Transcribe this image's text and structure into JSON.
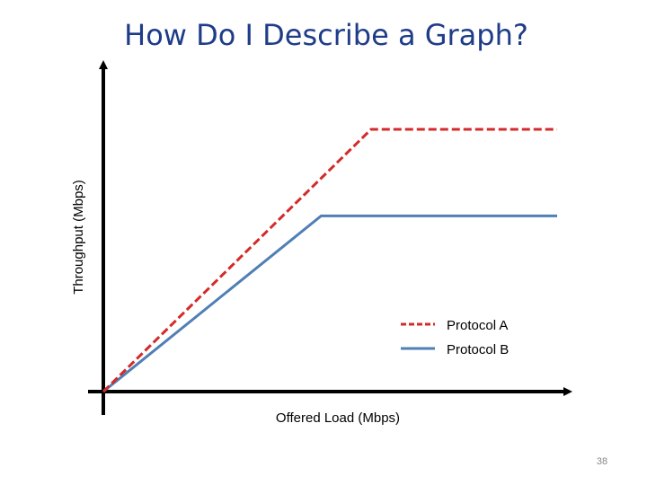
{
  "slide": {
    "title": "How Do I Describe a Graph?",
    "page_number": "38"
  },
  "chart_data": {
    "type": "line",
    "xlabel": "Offered Load (Mbps)",
    "ylabel": "Throughput (Mbps)",
    "grid": false,
    "legend_position": "bottom-right",
    "xlim": [
      0,
      100
    ],
    "ylim": [
      0,
      100
    ],
    "series": [
      {
        "name": "Protocol A",
        "color": "#d42a2a",
        "dash": "dashed",
        "points": [
          [
            0,
            0
          ],
          [
            59,
            100
          ],
          [
            100,
            100
          ]
        ]
      },
      {
        "name": "Protocol B",
        "color": "#4f7fb4",
        "dash": "solid",
        "points": [
          [
            0,
            0
          ],
          [
            48,
            67
          ],
          [
            100,
            67
          ]
        ]
      }
    ]
  }
}
